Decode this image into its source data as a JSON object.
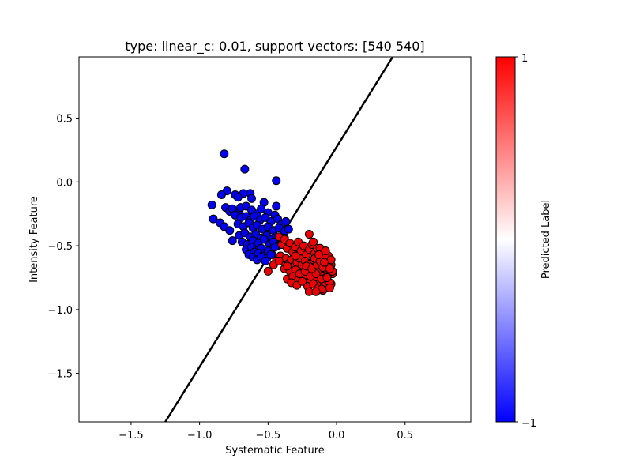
{
  "chart_data": {
    "type": "scatter",
    "title": "type: linear_c: 0.01, support vectors: [540 540]",
    "xlabel": "Systematic Feature",
    "ylabel": "Intensity Feature",
    "xlim": [
      -1.88,
      0.98
    ],
    "ylim": [
      -1.88,
      0.98
    ],
    "x_ticks": [
      -1.5,
      -1.0,
      -0.5,
      0.0,
      0.5
    ],
    "x_tick_labels": [
      "−1.5",
      "−1.0",
      "−0.5",
      "0.0",
      "0.5"
    ],
    "y_ticks": [
      -1.5,
      -1.0,
      -0.5,
      0.0,
      0.5
    ],
    "y_tick_labels": [
      "−1.5",
      "−1.0",
      "−0.5",
      "0.0",
      "0.5"
    ],
    "grid": false,
    "decision_boundary": {
      "x": [
        -1.25,
        0.41
      ],
      "y": [
        -1.88,
        0.98
      ]
    },
    "colorbar": {
      "label": "Predicted Label",
      "min": -1,
      "max": 1,
      "tick_labels": [
        "−1",
        "1"
      ],
      "colors": [
        "#0000ff",
        "#ffffff",
        "#ff0000"
      ]
    },
    "series": [
      {
        "label_value": -1,
        "color": "#0000ee",
        "x": [
          -0.82,
          -0.67,
          -0.44,
          -0.8,
          -0.84,
          -0.74,
          -0.68,
          -0.63,
          -0.62,
          -0.72,
          -0.53,
          -0.44,
          -0.81,
          -0.78,
          -0.76,
          -0.71,
          -0.7,
          -0.66,
          -0.62,
          -0.58,
          -0.55,
          -0.5,
          -0.45,
          -0.9,
          -0.85,
          -0.74,
          -0.7,
          -0.66,
          -0.63,
          -0.6,
          -0.56,
          -0.52,
          -0.48,
          -0.43,
          -0.4,
          -0.37,
          -0.91,
          -0.82,
          -0.78,
          -0.72,
          -0.68,
          -0.64,
          -0.61,
          -0.58,
          -0.54,
          -0.5,
          -0.46,
          -0.42,
          -0.38,
          -0.35,
          -0.76,
          -0.71,
          -0.67,
          -0.63,
          -0.59,
          -0.55,
          -0.51,
          -0.47,
          -0.44,
          -0.41,
          -0.38,
          -0.69,
          -0.65,
          -0.61,
          -0.57,
          -0.53,
          -0.49,
          -0.46,
          -0.43,
          -0.4,
          -0.66,
          -0.62,
          -0.58,
          -0.55,
          -0.51,
          -0.48,
          -0.45,
          -0.64,
          -0.6,
          -0.56,
          -0.53,
          -0.5,
          -0.47,
          -0.61,
          -0.57,
          -0.54,
          -0.51,
          -0.48,
          -0.58,
          -0.55,
          -0.52
        ],
        "y": [
          0.22,
          0.1,
          0.01,
          -0.07,
          -0.1,
          -0.1,
          -0.09,
          -0.09,
          -0.13,
          -0.12,
          -0.16,
          -0.19,
          -0.2,
          -0.23,
          -0.21,
          -0.24,
          -0.2,
          -0.19,
          -0.22,
          -0.25,
          -0.21,
          -0.24,
          -0.26,
          -0.29,
          -0.32,
          -0.26,
          -0.28,
          -0.27,
          -0.3,
          -0.27,
          -0.3,
          -0.28,
          -0.31,
          -0.29,
          -0.33,
          -0.31,
          -0.18,
          -0.35,
          -0.38,
          -0.33,
          -0.35,
          -0.32,
          -0.36,
          -0.34,
          -0.37,
          -0.35,
          -0.38,
          -0.36,
          -0.39,
          -0.37,
          -0.46,
          -0.42,
          -0.4,
          -0.43,
          -0.41,
          -0.44,
          -0.42,
          -0.45,
          -0.43,
          -0.46,
          -0.44,
          -0.47,
          -0.49,
          -0.46,
          -0.48,
          -0.45,
          -0.49,
          -0.47,
          -0.5,
          -0.48,
          -0.53,
          -0.51,
          -0.54,
          -0.52,
          -0.55,
          -0.53,
          -0.51,
          -0.57,
          -0.55,
          -0.58,
          -0.56,
          -0.54,
          -0.57,
          -0.59,
          -0.56,
          -0.58,
          -0.6,
          -0.57,
          -0.61,
          -0.59,
          -0.62
        ]
      },
      {
        "label_value": 1,
        "color": "#ee0000",
        "x": [
          -0.42,
          -0.4,
          -0.38,
          -0.36,
          -0.34,
          -0.32,
          -0.3,
          -0.28,
          -0.26,
          -0.24,
          -0.22,
          -0.2,
          -0.18,
          -0.16,
          -0.14,
          -0.12,
          -0.1,
          -0.08,
          -0.06,
          -0.04,
          -0.41,
          -0.39,
          -0.37,
          -0.35,
          -0.33,
          -0.31,
          -0.29,
          -0.27,
          -0.25,
          -0.23,
          -0.21,
          -0.19,
          -0.17,
          -0.15,
          -0.13,
          -0.11,
          -0.09,
          -0.07,
          -0.05,
          -0.03,
          -0.44,
          -0.38,
          -0.34,
          -0.3,
          -0.26,
          -0.22,
          -0.18,
          -0.14,
          -0.1,
          -0.06,
          -0.36,
          -0.32,
          -0.28,
          -0.24,
          -0.2,
          -0.16,
          -0.12,
          -0.08,
          -0.04,
          -0.33,
          -0.29,
          -0.25,
          -0.21,
          -0.17,
          -0.13,
          -0.09,
          -0.05,
          -0.27,
          -0.23,
          -0.19,
          -0.15,
          -0.11,
          -0.07,
          -0.03,
          -0.22,
          -0.18,
          -0.14,
          -0.1,
          -0.06,
          -0.16,
          -0.12,
          -0.08,
          -0.04,
          -0.2,
          -0.1,
          -0.05,
          -0.36,
          -0.3,
          -0.5,
          -0.46,
          -0.42,
          -0.2,
          -0.17,
          -0.12,
          -0.08,
          -0.05,
          -0.13,
          -0.09,
          -0.07,
          -0.11,
          -0.15
        ],
        "y": [
          -0.43,
          -0.49,
          -0.45,
          -0.52,
          -0.48,
          -0.55,
          -0.51,
          -0.47,
          -0.54,
          -0.5,
          -0.57,
          -0.53,
          -0.49,
          -0.56,
          -0.52,
          -0.59,
          -0.55,
          -0.62,
          -0.58,
          -0.65,
          -0.58,
          -0.62,
          -0.6,
          -0.64,
          -0.61,
          -0.66,
          -0.63,
          -0.6,
          -0.65,
          -0.62,
          -0.67,
          -0.64,
          -0.61,
          -0.66,
          -0.63,
          -0.68,
          -0.65,
          -0.7,
          -0.67,
          -0.72,
          -0.62,
          -0.68,
          -0.7,
          -0.69,
          -0.72,
          -0.7,
          -0.73,
          -0.71,
          -0.74,
          -0.72,
          -0.76,
          -0.74,
          -0.77,
          -0.75,
          -0.78,
          -0.76,
          -0.79,
          -0.77,
          -0.8,
          -0.79,
          -0.81,
          -0.78,
          -0.82,
          -0.8,
          -0.83,
          -0.81,
          -0.79,
          -0.72,
          -0.7,
          -0.74,
          -0.72,
          -0.76,
          -0.74,
          -0.7,
          -0.66,
          -0.68,
          -0.65,
          -0.67,
          -0.63,
          -0.6,
          -0.62,
          -0.59,
          -0.61,
          -0.86,
          -0.85,
          -0.83,
          -0.66,
          -0.58,
          -0.7,
          -0.65,
          -0.62,
          -0.41,
          -0.47,
          -0.52,
          -0.54,
          -0.68,
          -0.57,
          -0.63,
          -0.75,
          -0.84,
          -0.86
        ]
      }
    ]
  }
}
